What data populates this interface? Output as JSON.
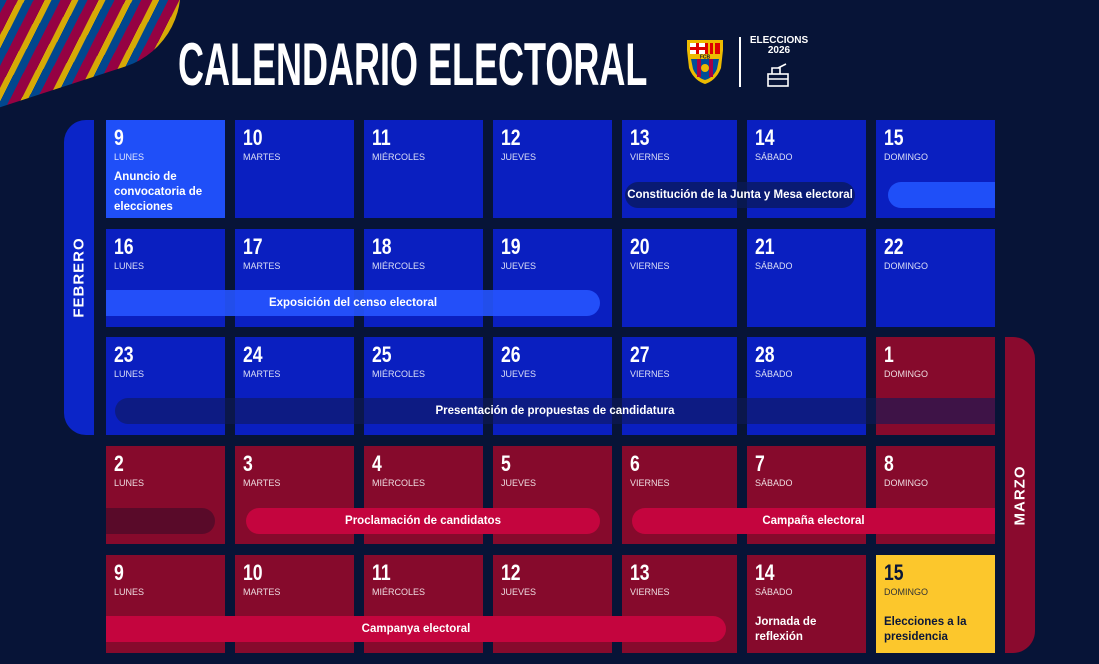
{
  "header": {
    "title": "CALENDARIO ELECTORAL",
    "crest_text": "FCB",
    "elections_label": "ELECCIONS",
    "elections_year": "2026"
  },
  "months": {
    "february": "FEBRERO",
    "march": "MARZO"
  },
  "colors": {
    "background": "#071437",
    "blue": "#0a1fc0",
    "red": "#860a2c",
    "highlight": "#1f4ff8",
    "yellow": "#fcc72c"
  },
  "days": [
    {
      "num": "9",
      "day": "LUNES",
      "note": "Anuncio de convocatoria de elecciones",
      "color": "hl"
    },
    {
      "num": "10",
      "day": "MARTES",
      "color": "blue"
    },
    {
      "num": "11",
      "day": "MIÉRCOLES",
      "color": "blue"
    },
    {
      "num": "12",
      "day": "JUEVES",
      "color": "blue"
    },
    {
      "num": "13",
      "day": "VIERNES",
      "color": "blue"
    },
    {
      "num": "14",
      "day": "SÁBADO",
      "color": "blue"
    },
    {
      "num": "15",
      "day": "DOMINGO",
      "color": "blue"
    },
    {
      "num": "16",
      "day": "LUNES",
      "color": "blue"
    },
    {
      "num": "17",
      "day": "MARTES",
      "color": "blue"
    },
    {
      "num": "18",
      "day": "MIÉRCOLES",
      "color": "blue"
    },
    {
      "num": "19",
      "day": "JUEVES",
      "color": "blue"
    },
    {
      "num": "20",
      "day": "VIERNES",
      "color": "blue"
    },
    {
      "num": "21",
      "day": "SÁBADO",
      "color": "blue"
    },
    {
      "num": "22",
      "day": "DOMINGO",
      "color": "blue"
    },
    {
      "num": "23",
      "day": "LUNES",
      "color": "blue"
    },
    {
      "num": "24",
      "day": "MARTES",
      "color": "blue"
    },
    {
      "num": "25",
      "day": "MIÉRCOLES",
      "color": "blue"
    },
    {
      "num": "26",
      "day": "JUEVES",
      "color": "blue"
    },
    {
      "num": "27",
      "day": "VIERNES",
      "color": "blue"
    },
    {
      "num": "28",
      "day": "SÁBADO",
      "color": "blue"
    },
    {
      "num": "1",
      "day": "DOMINGO",
      "color": "red"
    },
    {
      "num": "2",
      "day": "LUNES",
      "color": "red"
    },
    {
      "num": "3",
      "day": "MARTES",
      "color": "red"
    },
    {
      "num": "4",
      "day": "MIÉRCOLES",
      "color": "red"
    },
    {
      "num": "5",
      "day": "JUEVES",
      "color": "red"
    },
    {
      "num": "6",
      "day": "VIERNES",
      "color": "red"
    },
    {
      "num": "7",
      "day": "SÁBADO",
      "color": "red"
    },
    {
      "num": "8",
      "day": "DOMINGO",
      "color": "red"
    },
    {
      "num": "9",
      "day": "LUNES",
      "color": "red"
    },
    {
      "num": "10",
      "day": "MARTES",
      "color": "red"
    },
    {
      "num": "11",
      "day": "MIÉRCOLES",
      "color": "red"
    },
    {
      "num": "12",
      "day": "JUEVES",
      "color": "red"
    },
    {
      "num": "13",
      "day": "VIERNES",
      "color": "red"
    },
    {
      "num": "14",
      "day": "SÁBADO",
      "note": "Jornada de reflexión",
      "color": "red"
    },
    {
      "num": "15",
      "day": "DOMINGO",
      "note": "Elecciones a la presidencia",
      "color": "yel"
    }
  ],
  "events": {
    "constitucion": "Constitución de la Junta y Mesa electoral",
    "exposicion": "Exposición del censo electoral",
    "presentacion": "Presentación de propuestas de candidatura",
    "proclamacion": "Proclamación de candidatos",
    "campana": "Campaña electoral",
    "campanya": "Campanya electoral"
  }
}
